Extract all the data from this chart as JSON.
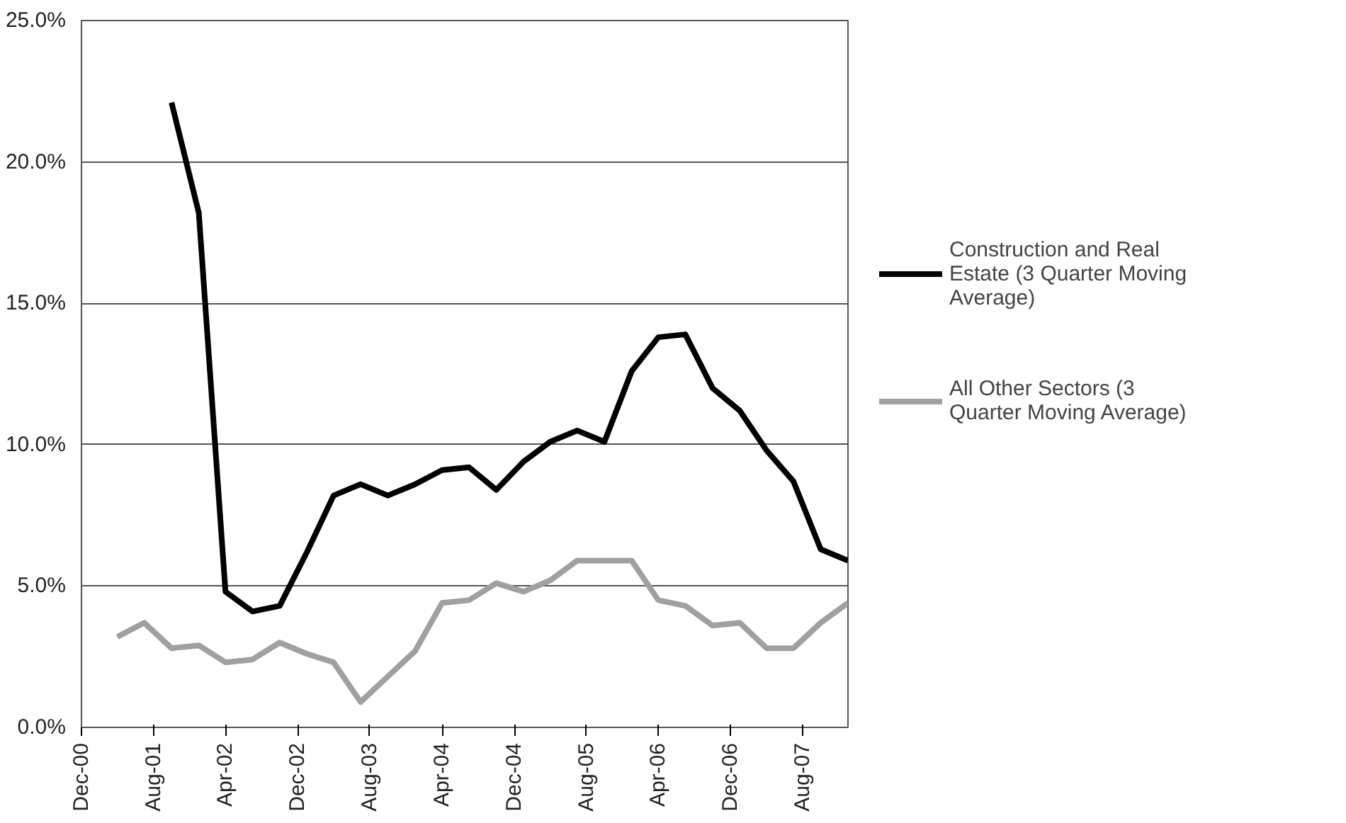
{
  "chart_data": {
    "type": "line",
    "xlim": [
      "2000-12",
      "2008-01"
    ],
    "xticks": [
      {
        "value": "2000-12",
        "label": "Dec-00"
      },
      {
        "value": "2001-08",
        "label": "Aug-01"
      },
      {
        "value": "2002-04",
        "label": "Apr-02"
      },
      {
        "value": "2002-12",
        "label": "Dec-02"
      },
      {
        "value": "2003-08",
        "label": "Aug-03"
      },
      {
        "value": "2004-04",
        "label": "Apr-04"
      },
      {
        "value": "2004-12",
        "label": "Dec-04"
      },
      {
        "value": "2005-08",
        "label": "Aug-05"
      },
      {
        "value": "2006-04",
        "label": "Apr-06"
      },
      {
        "value": "2006-12",
        "label": "Dec-06"
      },
      {
        "value": "2007-08",
        "label": "Aug-07"
      }
    ],
    "ylim": [
      0,
      25
    ],
    "yticks": [
      {
        "value": 0,
        "label": "0.0%"
      },
      {
        "value": 5,
        "label": "5.0%"
      },
      {
        "value": 10,
        "label": "10.0%"
      },
      {
        "value": 15,
        "label": "15.0%"
      },
      {
        "value": 20,
        "label": "20.0%"
      },
      {
        "value": 25,
        "label": "25.0%"
      }
    ],
    "grid": "y",
    "legend": "right",
    "line_style": "solid",
    "series": [
      {
        "name": "Construction and Real Estate (3 Quarter Moving Average)",
        "color": "#000000",
        "x": [
          "2001-10",
          "2002-01",
          "2002-04",
          "2002-07",
          "2002-10",
          "2003-01",
          "2003-04",
          "2003-07",
          "2003-10",
          "2004-01",
          "2004-04",
          "2004-07",
          "2004-10",
          "2005-01",
          "2005-04",
          "2005-07",
          "2005-10",
          "2006-01",
          "2006-04",
          "2006-07",
          "2006-10",
          "2007-01",
          "2007-04",
          "2007-07",
          "2007-10",
          "2008-01"
        ],
        "values": [
          22.1,
          18.2,
          4.8,
          4.1,
          4.3,
          6.2,
          8.2,
          8.6,
          8.2,
          8.6,
          9.1,
          9.2,
          8.4,
          9.4,
          10.1,
          10.5,
          10.1,
          12.6,
          13.8,
          13.9,
          12.0,
          11.2,
          9.8,
          8.7,
          6.3,
          5.9
        ]
      },
      {
        "name": "All Other Sectors (3 Quarter Moving Average)",
        "color": "#a0a0a0",
        "x": [
          "2001-04",
          "2001-07",
          "2001-10",
          "2002-01",
          "2002-04",
          "2002-07",
          "2002-10",
          "2003-01",
          "2003-04",
          "2003-07",
          "2003-10",
          "2004-01",
          "2004-04",
          "2004-07",
          "2004-10",
          "2005-01",
          "2005-04",
          "2005-07",
          "2005-10",
          "2006-01",
          "2006-04",
          "2006-07",
          "2006-10",
          "2007-01",
          "2007-04",
          "2007-07",
          "2007-10",
          "2008-01"
        ],
        "values": [
          3.2,
          3.7,
          2.8,
          2.9,
          2.3,
          2.4,
          3.0,
          2.6,
          2.3,
          0.9,
          1.8,
          2.7,
          4.4,
          4.5,
          5.1,
          4.8,
          5.2,
          5.9,
          5.9,
          5.9,
          4.5,
          4.3,
          3.6,
          3.7,
          2.8,
          2.8,
          3.7,
          4.4
        ]
      }
    ]
  }
}
